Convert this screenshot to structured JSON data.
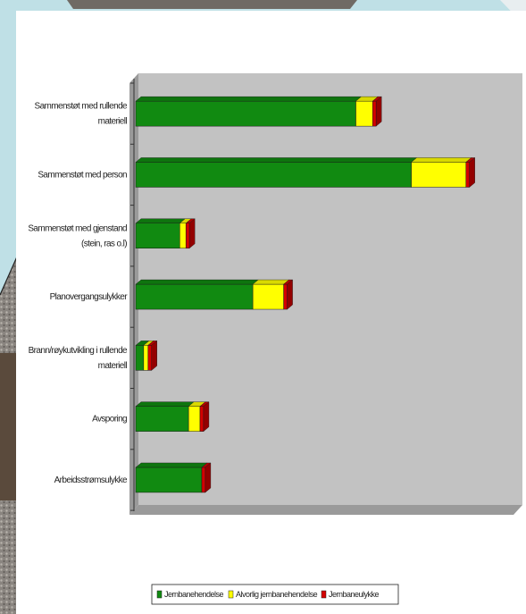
{
  "chart_data": {
    "type": "bar",
    "orientation": "horizontal",
    "stacked": true,
    "categories": [
      [
        "Sammenstøt med rullende",
        "materiell"
      ],
      [
        "Sammenstøt med person"
      ],
      [
        "Sammenstøt med gjenstand",
        "(stein, ras o.l)"
      ],
      [
        "Planovergangsulykker"
      ],
      [
        "Brann/røykutvikling i rullende",
        "materiell"
      ],
      [
        "Avsporing"
      ],
      [
        "Arbeidsstrømsulykke"
      ]
    ],
    "series": [
      {
        "name": "Jernbanehendelse",
        "color": "#118a11",
        "values": [
          250,
          313,
          50,
          133,
          9,
          60,
          75
        ]
      },
      {
        "name": "Alvorlig jernbanehendelse",
        "color": "#ffff00",
        "values": [
          19,
          62,
          7,
          35,
          5,
          13,
          0
        ]
      },
      {
        "name": "Jernbaneulykke",
        "color": "#d40000",
        "values": [
          4,
          4,
          4,
          4,
          4,
          4,
          4
        ]
      }
    ],
    "xlim": [
      0,
      430
    ],
    "grid": false,
    "legend": "bottom"
  }
}
